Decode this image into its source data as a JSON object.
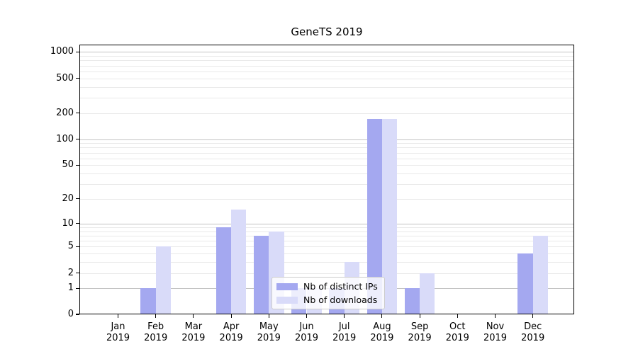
{
  "title": "GeneTS 2019",
  "legend": {
    "items": [
      {
        "label": "Nb of distinct IPs",
        "color_key": "distinct_ips"
      },
      {
        "label": "Nb of downloads",
        "color_key": "downloads"
      }
    ]
  },
  "colors": {
    "distinct_ips": "#a4a8f0",
    "downloads": "#d9dbf9",
    "major_grid": "#c3c3c3",
    "minor_grid": "#e9e9e9",
    "axis": "#000000",
    "legend_border": "#cccccc"
  },
  "chart_data": {
    "type": "bar",
    "title": "GeneTS 2019",
    "categories": [
      "Jan 2019",
      "Feb 2019",
      "Mar 2019",
      "Apr 2019",
      "May 2019",
      "Jun 2019",
      "Jul 2019",
      "Aug 2019",
      "Sep 2019",
      "Oct 2019",
      "Nov 2019",
      "Dec 2019"
    ],
    "series": [
      {
        "name": "Nb of distinct IPs",
        "color_key": "distinct_ips",
        "values": [
          0,
          1,
          0,
          9,
          7,
          1,
          1,
          170,
          1,
          0,
          0,
          4
        ]
      },
      {
        "name": "Nb of downloads",
        "color_key": "downloads",
        "values": [
          0,
          5,
          0,
          15,
          8,
          1,
          3,
          170,
          2,
          0,
          0,
          7
        ]
      }
    ],
    "xlabel": "",
    "ylabel": "",
    "yscale": "symlog",
    "yticks": [
      0,
      1,
      2,
      5,
      10,
      20,
      50,
      100,
      200,
      500,
      1000
    ],
    "ylim": [
      0,
      1200
    ],
    "grid": "on",
    "legend_position": "lower center"
  }
}
